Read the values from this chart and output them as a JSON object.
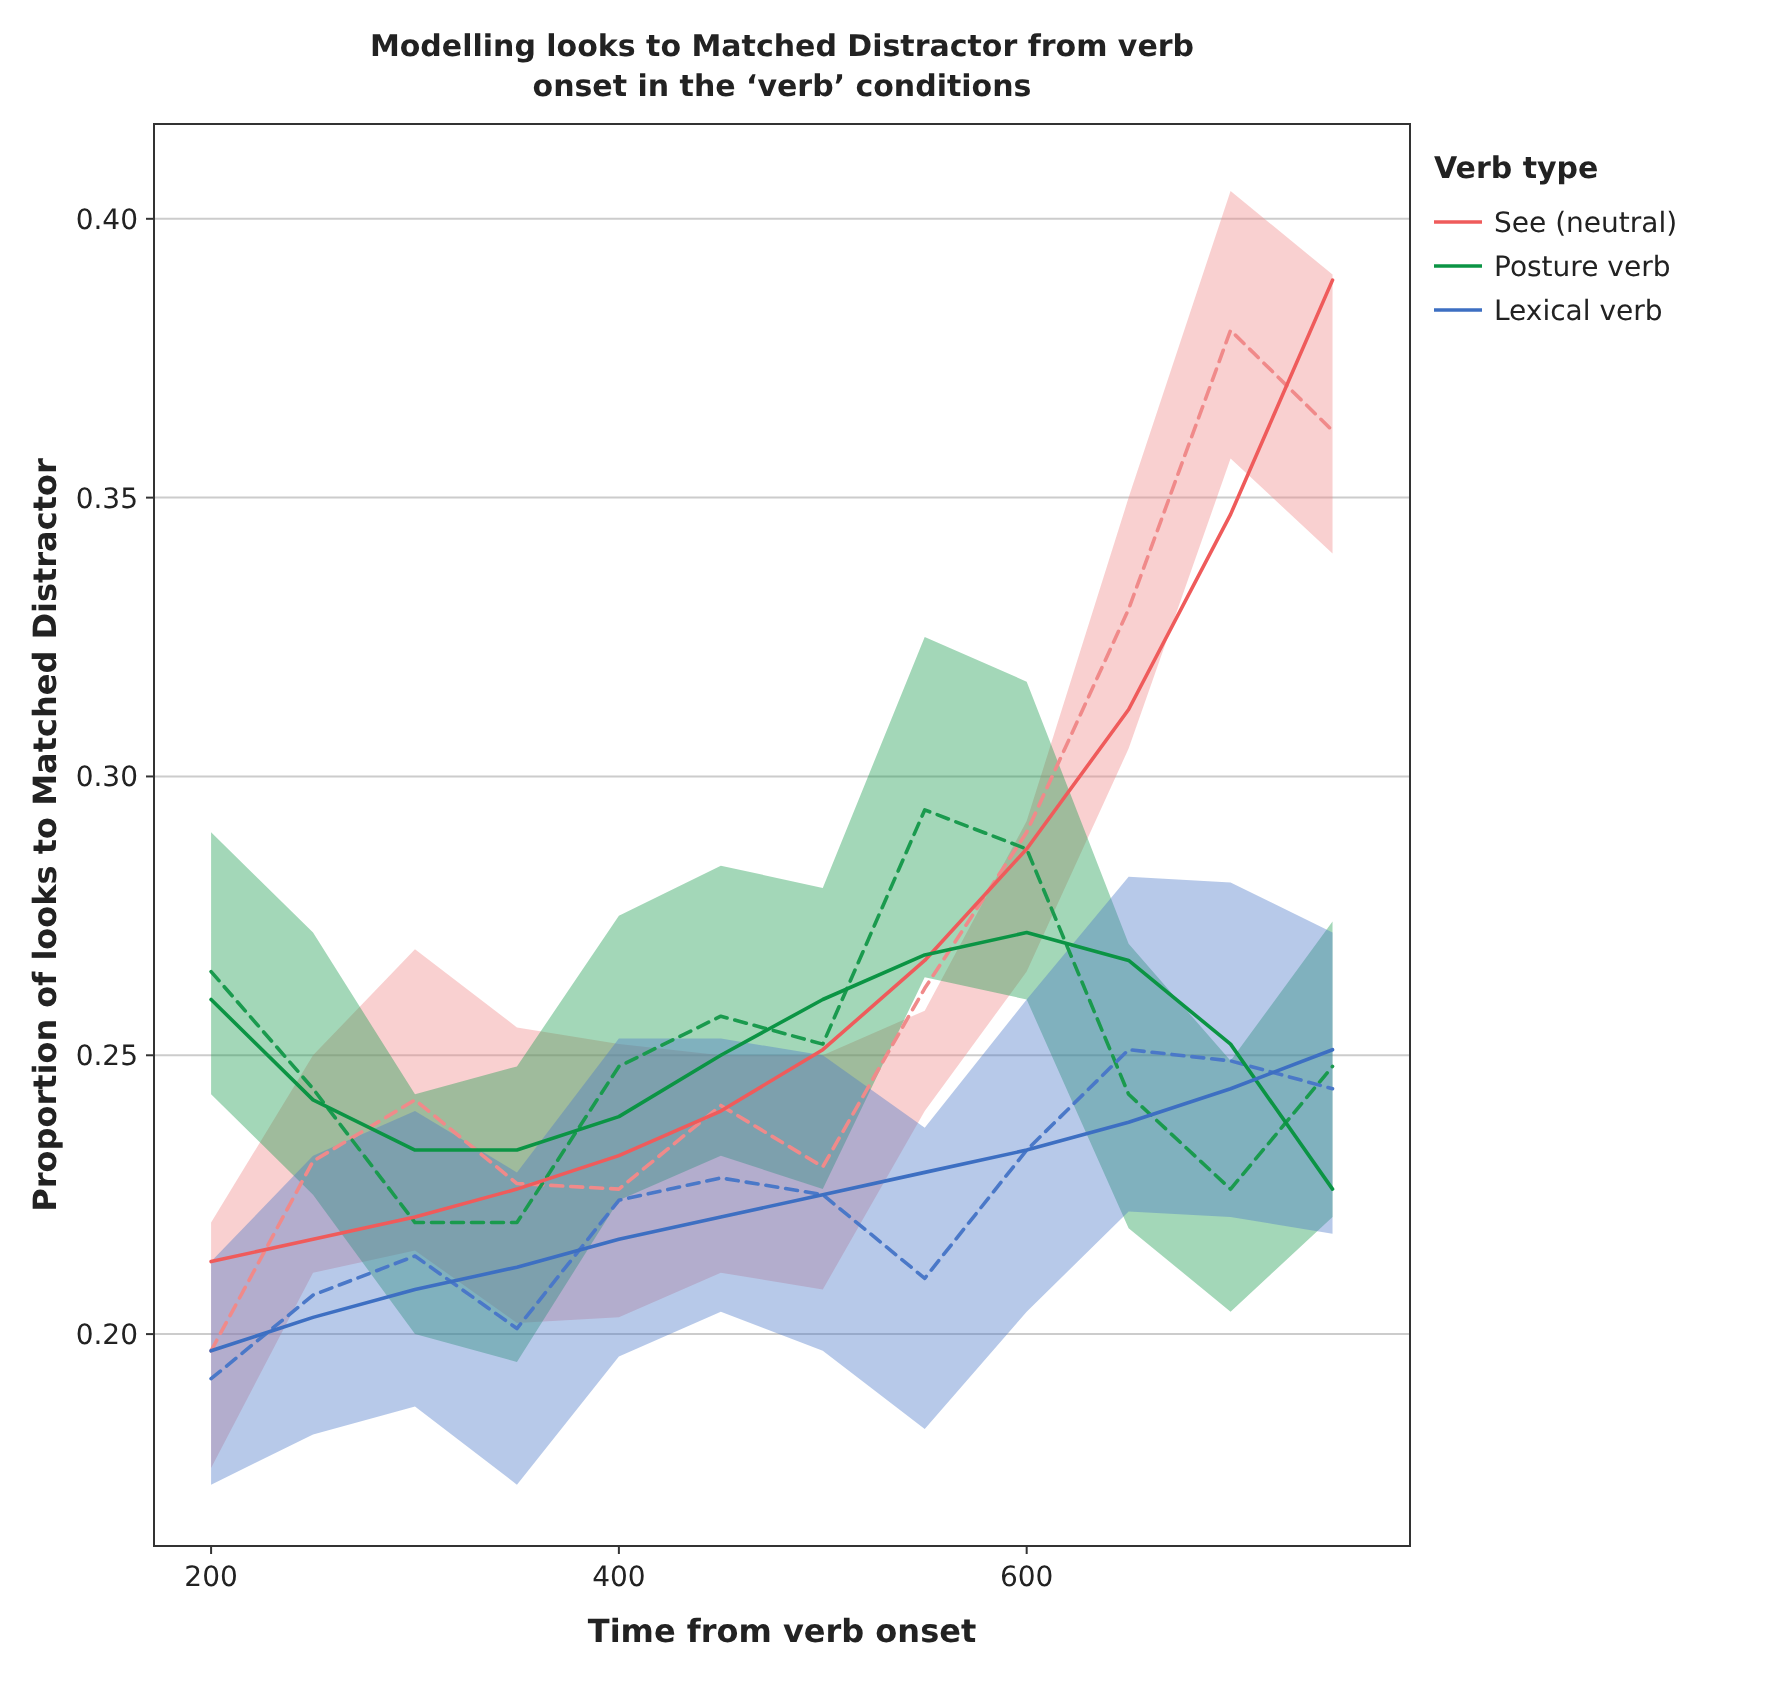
{
  "chart_data": {
    "type": "line",
    "title": "Modelling looks to Matched Distractor from verb onset in the ‘verb’ conditions",
    "xlabel": "Time from verb onset",
    "ylabel": "Proportion of looks to Matched Distractor",
    "legend_title": "Verb type",
    "legend": "right",
    "grid": "y",
    "marker": "none",
    "x": [
      200,
      250,
      300,
      350,
      400,
      450,
      500,
      550,
      600,
      650,
      700,
      750
    ],
    "xlim": [
      172,
      788
    ],
    "xticks": [
      200,
      400,
      600
    ],
    "ylim": [
      0.162,
      0.417
    ],
    "yticks": [
      {
        "value": 0.2,
        "label": "0.20"
      },
      {
        "value": 0.25,
        "label": "0.25"
      },
      {
        "value": 0.3,
        "label": "0.30"
      },
      {
        "value": 0.35,
        "label": "0.35"
      },
      {
        "value": 0.4,
        "label": "0.40"
      }
    ],
    "series": [
      {
        "color": "#f08a8a",
        "line_style": "dashed",
        "values": [
          0.197,
          0.231,
          0.242,
          0.227,
          0.226,
          0.241,
          0.23,
          0.262,
          0.29,
          0.33,
          0.38,
          0.362
        ],
        "lower": [
          0.176,
          0.211,
          0.215,
          0.202,
          0.203,
          0.211,
          0.208,
          0.24,
          0.265,
          0.305,
          0.357,
          0.34
        ],
        "upper": [
          0.22,
          0.25,
          0.269,
          0.255,
          0.252,
          0.25,
          0.25,
          0.258,
          0.292,
          0.35,
          0.405,
          0.39
        ]
      },
      {
        "color": "#1a9a4e",
        "line_style": "dashed",
        "values": [
          0.265,
          0.244,
          0.22,
          0.22,
          0.248,
          0.257,
          0.252,
          0.294,
          0.287,
          0.243,
          0.226,
          0.248
        ],
        "lower": [
          0.243,
          0.225,
          0.2,
          0.195,
          0.224,
          0.232,
          0.226,
          0.264,
          0.26,
          0.219,
          0.204,
          0.221
        ],
        "upper": [
          0.29,
          0.272,
          0.243,
          0.248,
          0.275,
          0.284,
          0.28,
          0.325,
          0.317,
          0.27,
          0.249,
          0.274
        ]
      },
      {
        "color": "#4a78c8",
        "line_style": "dashed",
        "values": [
          0.192,
          0.207,
          0.214,
          0.201,
          0.224,
          0.228,
          0.225,
          0.21,
          0.233,
          0.251,
          0.249,
          0.244
        ],
        "lower": [
          0.173,
          0.182,
          0.187,
          0.173,
          0.196,
          0.204,
          0.197,
          0.183,
          0.204,
          0.222,
          0.221,
          0.218
        ],
        "upper": [
          0.213,
          0.232,
          0.24,
          0.229,
          0.253,
          0.253,
          0.25,
          0.237,
          0.26,
          0.282,
          0.281,
          0.272
        ]
      },
      {
        "name": "See (neutral)",
        "color": "#ef5b5b",
        "line_style": "solid",
        "values": [
          0.213,
          0.217,
          0.221,
          0.226,
          0.232,
          0.24,
          0.251,
          0.267,
          0.287,
          0.312,
          0.347,
          0.389
        ]
      },
      {
        "name": "Posture verb",
        "color": "#0b9444",
        "line_style": "solid",
        "values": [
          0.26,
          0.242,
          0.233,
          0.233,
          0.239,
          0.25,
          0.26,
          0.268,
          0.272,
          0.267,
          0.252,
          0.226
        ]
      },
      {
        "name": "Lexical verb",
        "color": "#3d6fc2",
        "line_style": "solid",
        "values": [
          0.197,
          0.203,
          0.208,
          0.212,
          0.217,
          0.221,
          0.225,
          0.229,
          0.233,
          0.238,
          0.244,
          0.251
        ]
      }
    ]
  }
}
